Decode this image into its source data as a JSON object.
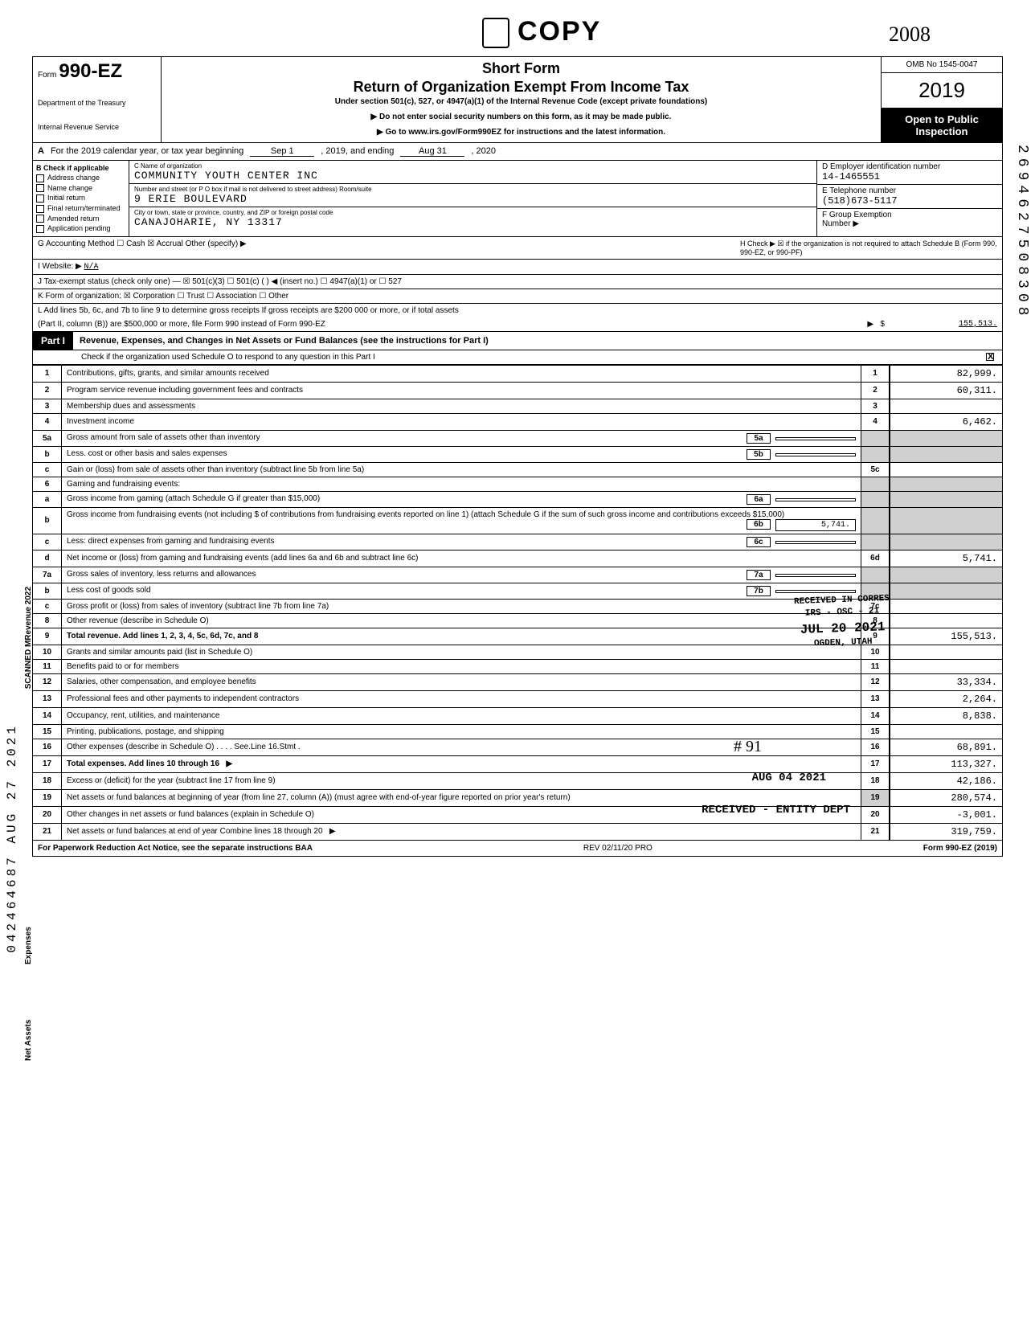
{
  "stamps": {
    "copy": "COPY",
    "year_script": "2008",
    "margin_left": "042464687 AUG 27 2021",
    "margin_right": "2694627508308",
    "received_corres_l1": "RECEIVED IN CORRES",
    "received_corres_l2": "IRS - OSC - 21",
    "received_corres_l3": "JUL 20 2021",
    "received_corres_l4": "OGDEN, UTAH",
    "num91": "# 91",
    "aug04": "AUG 04 2021",
    "received_entity": "RECEIVED - ENTITY DEPT"
  },
  "header": {
    "form_prefix": "Form",
    "form_no": "990-EZ",
    "dept_l1": "Department of the Treasury",
    "dept_l2": "Internal Revenue Service",
    "short_form": "Short Form",
    "title": "Return of Organization Exempt From Income Tax",
    "subtitle": "Under section 501(c), 527, or 4947(a)(1) of the Internal Revenue Code (except private foundations)",
    "donot": "▶ Do not enter social security numbers on this form, as it may be made public.",
    "goto": "▶ Go to www.irs.gov/Form990EZ for instructions and the latest information.",
    "omb": "OMB No 1545-0047",
    "big_year": "2019",
    "open_l1": "Open to Public",
    "open_l2": "Inspection"
  },
  "rowA": {
    "label": "A",
    "text_l": "For the 2019 calendar year, or tax year beginning",
    "begin": "Sep 1",
    "mid": ", 2019, and ending",
    "end": "Aug 31",
    "year": ", 2020"
  },
  "colB": {
    "header": "B  Check if applicable",
    "items": [
      "Address change",
      "Name change",
      "Initial return",
      "Final return/terminated",
      "Amended return",
      "Application pending"
    ]
  },
  "colC": {
    "name_lbl": "C Name of organization",
    "name": "COMMUNITY YOUTH CENTER INC",
    "street_lbl": "Number and street (or P O box if mail is not delivered to street address)            Room/suite",
    "street": "9 ERIE BOULEVARD",
    "city_lbl": "City or town, state or province, country, and ZIP or foreign postal code",
    "city": "CANAJOHARIE, NY 13317"
  },
  "colDE": {
    "d_lbl": "D Employer identification number",
    "d_val": "14-1465551",
    "e_lbl": "E Telephone number",
    "e_val": "(518)673-5117",
    "f_lbl": "F Group Exemption",
    "f_lbl2": "Number ▶"
  },
  "lineG": "G Accounting Method      ☐ Cash    ☒ Accrual    Other (specify) ▶",
  "lineH": "H Check ▶ ☒ if the organization is not required to attach Schedule B (Form 990, 990-EZ, or 990-PF)",
  "lineI_lbl": "I  Website: ▶",
  "lineI_val": "N/A",
  "lineJ": "J Tax-exempt status (check only one) —  ☒ 501(c)(3)   ☐ 501(c) (       ) ◀ (insert no.)  ☐ 4947(a)(1) or   ☐ 527",
  "lineK": "K Form of organization:   ☒ Corporation    ☐ Trust    ☐ Association    ☐ Other",
  "lineL_1": "L Add lines 5b, 6c, and 7b to line 9 to determine gross receipts  If gross receipts are $200 000 or more, or if total assets",
  "lineL_2": "(Part II, column (B)) are $500,000 or more, file Form 990 instead of Form 990-EZ",
  "lineL_amt": "155,513.",
  "part1": {
    "label": "Part I",
    "title": "Revenue, Expenses, and Changes in Net Assets or Fund Balances (see the instructions for Part I)",
    "check_o": "Check if the organization used Schedule O to respond to any question in this Part I"
  },
  "sideLabels": {
    "revenue": "SCANNED  MRevenue  2022",
    "expenses": "Expenses",
    "netassets": "Net Assets"
  },
  "rows": [
    {
      "n": "1",
      "desc": "Contributions, gifts, grants, and similar amounts received",
      "box": "1",
      "amt": "82,999."
    },
    {
      "n": "2",
      "desc": "Program service revenue including government fees and contracts",
      "box": "2",
      "amt": "60,311."
    },
    {
      "n": "3",
      "desc": "Membership dues and assessments",
      "box": "3",
      "amt": ""
    },
    {
      "n": "4",
      "desc": "Investment income",
      "box": "4",
      "amt": "6,462."
    },
    {
      "n": "5a",
      "desc": "Gross amount from sale of assets other than inventory",
      "inner": "5a",
      "innerval": "",
      "shade": true
    },
    {
      "n": "b",
      "desc": "Less. cost or other basis and sales expenses",
      "inner": "5b",
      "innerval": "",
      "shade": true
    },
    {
      "n": "c",
      "desc": "Gain or (loss) from sale of assets other than inventory (subtract line 5b from line 5a)",
      "box": "5c",
      "amt": ""
    },
    {
      "n": "6",
      "desc": "Gaming and fundraising events:",
      "shade": true
    },
    {
      "n": "a",
      "desc": "Gross income from gaming (attach Schedule G if greater than $15,000)",
      "inner": "6a",
      "innerval": "",
      "shade": true
    },
    {
      "n": "b",
      "desc": "Gross income from fundraising events (not including $                     of contributions from fundraising events reported on line 1) (attach Schedule G if the sum of such gross income and contributions exceeds $15,000)",
      "inner": "6b",
      "innerval": "5,741.",
      "shade": true
    },
    {
      "n": "c",
      "desc": "Less: direct expenses from gaming and fundraising events",
      "inner": "6c",
      "innerval": "",
      "shade": true
    },
    {
      "n": "d",
      "desc": "Net income or (loss) from gaming and fundraising events (add lines 6a and 6b and subtract line 6c)",
      "box": "6d",
      "amt": "5,741."
    },
    {
      "n": "7a",
      "desc": "Gross sales of inventory, less returns and allowances",
      "inner": "7a",
      "innerval": "",
      "shade": true
    },
    {
      "n": "b",
      "desc": "Less cost of goods sold",
      "inner": "7b",
      "innerval": "",
      "shade": true
    },
    {
      "n": "c",
      "desc": "Gross profit or (loss) from sales of inventory (subtract line 7b from line 7a)",
      "box": "7c",
      "amt": ""
    },
    {
      "n": "8",
      "desc": "Other revenue (describe in Schedule O)",
      "box": "8",
      "amt": ""
    },
    {
      "n": "9",
      "desc": "Total revenue. Add lines 1, 2, 3, 4, 5c, 6d, 7c, and 8",
      "box": "9",
      "amt": "155,513.",
      "bold": true
    },
    {
      "n": "10",
      "desc": "Grants and similar amounts paid (list in Schedule O)",
      "box": "10",
      "amt": ""
    },
    {
      "n": "11",
      "desc": "Benefits paid to or for members",
      "box": "11",
      "amt": ""
    },
    {
      "n": "12",
      "desc": "Salaries, other compensation, and employee benefits",
      "box": "12",
      "amt": "33,334."
    },
    {
      "n": "13",
      "desc": "Professional fees and other payments to independent contractors",
      "box": "13",
      "amt": "2,264."
    },
    {
      "n": "14",
      "desc": "Occupancy, rent, utilities, and maintenance",
      "box": "14",
      "amt": "8,838."
    },
    {
      "n": "15",
      "desc": "Printing, publications, postage, and shipping",
      "box": "15",
      "amt": ""
    },
    {
      "n": "16",
      "desc": "Other expenses (describe in Schedule O)  . . . .     See.Line 16.Stmt .",
      "box": "16",
      "amt": "68,891."
    },
    {
      "n": "17",
      "desc": "Total expenses. Add lines 10 through 16",
      "box": "17",
      "amt": "113,327.",
      "bold": true,
      "arrow": true
    },
    {
      "n": "18",
      "desc": "Excess or (deficit) for the year (subtract line 17 from line 9)",
      "box": "18",
      "amt": "42,186."
    },
    {
      "n": "19",
      "desc": "Net assets or fund balances at beginning of year (from line 27, column (A)) (must agree with end-of-year figure reported on prior year's return)",
      "box": "19",
      "amt": "280,574.",
      "boxshade": true
    },
    {
      "n": "20",
      "desc": "Other changes in net assets or fund balances (explain in Schedule O)",
      "box": "20",
      "amt": "-3,001."
    },
    {
      "n": "21",
      "desc": "Net assets or fund balances at end of year  Combine lines 18 through 20",
      "box": "21",
      "amt": "319,759.",
      "arrow": true
    }
  ],
  "footer": {
    "left": "For Paperwork Reduction Act Notice, see the separate instructions  BAA",
    "mid": "REV 02/11/20 PRO",
    "right": "Form 990-EZ (2019)"
  }
}
